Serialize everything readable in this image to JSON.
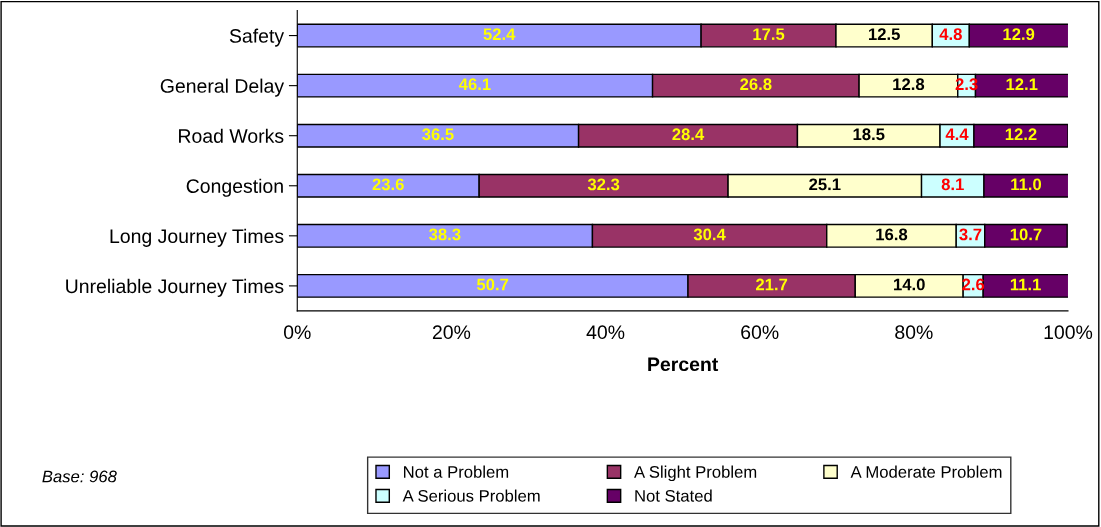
{
  "chart_data": {
    "type": "bar",
    "orientation": "horizontal",
    "stacked": true,
    "categories": [
      "Safety",
      "General Delay",
      "Road Works",
      "Congestion",
      "Long Journey Times",
      "Unreliable Journey Times"
    ],
    "series": [
      {
        "name": "Not a Problem",
        "color": "#9999ff",
        "values": [
          52.4,
          46.1,
          36.5,
          23.6,
          38.3,
          50.7
        ],
        "value_labels": [
          "52.4",
          "46.1",
          "36.5",
          "23.6",
          "38.3",
          "50.7"
        ]
      },
      {
        "name": "A Slight Problem",
        "color": "#993366",
        "values": [
          17.5,
          26.8,
          28.4,
          32.3,
          30.4,
          21.7
        ],
        "value_labels": [
          "17.5",
          "26.8",
          "28.4",
          "32.3",
          "30.4",
          "21.7"
        ]
      },
      {
        "name": "A Moderate Problem",
        "color": "#ffffcc",
        "values": [
          12.5,
          12.8,
          18.5,
          25.1,
          16.8,
          14.0
        ],
        "value_labels": [
          "12.5",
          "12.8",
          "18.5",
          "25.1",
          "16.8",
          "14.0"
        ]
      },
      {
        "name": "A Serious Problem",
        "color": "#ccffff",
        "values": [
          4.8,
          2.3,
          4.4,
          8.1,
          3.7,
          2.6
        ],
        "value_labels": [
          "4.8",
          "2.3",
          "4.4",
          "8.1",
          "3.7",
          "2.6"
        ]
      },
      {
        "name": "Not Stated",
        "color": "#660066",
        "values": [
          12.9,
          12.1,
          12.2,
          11.0,
          10.7,
          11.1
        ],
        "value_labels": [
          "12.9",
          "12.1",
          "12.2",
          "11.0",
          "10.7",
          "11.1"
        ]
      }
    ],
    "xlim": [
      0,
      100
    ],
    "xticks": [
      {
        "value": 0,
        "label": "0%"
      },
      {
        "value": 20,
        "label": "20%"
      },
      {
        "value": 40,
        "label": "40%"
      },
      {
        "value": 60,
        "label": "60%"
      },
      {
        "value": 80,
        "label": "80%"
      },
      {
        "value": 100,
        "label": "100%"
      }
    ],
    "xlabel": "Percent",
    "annotations": [
      "Base: 968"
    ],
    "legend": "bottom",
    "grid": false
  }
}
